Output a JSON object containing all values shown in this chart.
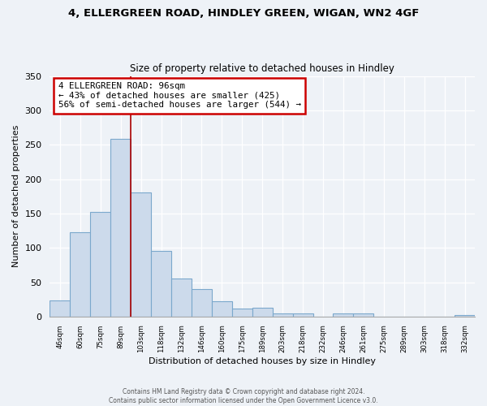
{
  "title1": "4, ELLERGREEN ROAD, HINDLEY GREEN, WIGAN, WN2 4GF",
  "title2": "Size of property relative to detached houses in Hindley",
  "xlabel": "Distribution of detached houses by size in Hindley",
  "ylabel": "Number of detached properties",
  "categories": [
    "46sqm",
    "60sqm",
    "75sqm",
    "89sqm",
    "103sqm",
    "118sqm",
    "132sqm",
    "146sqm",
    "160sqm",
    "175sqm",
    "189sqm",
    "203sqm",
    "218sqm",
    "232sqm",
    "246sqm",
    "261sqm",
    "275sqm",
    "289sqm",
    "303sqm",
    "318sqm",
    "332sqm"
  ],
  "values": [
    24,
    123,
    152,
    258,
    181,
    95,
    55,
    40,
    22,
    12,
    13,
    5,
    5,
    0,
    4,
    5,
    0,
    0,
    0,
    0,
    2
  ],
  "bar_color": "#ccdaeb",
  "bar_edge_color": "#7ba8cc",
  "reference_line_x": 3.5,
  "annotation_text1": "4 ELLERGREEN ROAD: 96sqm",
  "annotation_text2": "← 43% of detached houses are smaller (425)",
  "annotation_text3": "56% of semi-detached houses are larger (544) →",
  "annotation_box_color": "#ffffff",
  "annotation_box_edge_color": "#cc0000",
  "ref_line_color": "#aa0000",
  "ylim": [
    0,
    350
  ],
  "yticks": [
    0,
    50,
    100,
    150,
    200,
    250,
    300,
    350
  ],
  "footer1": "Contains HM Land Registry data © Crown copyright and database right 2024.",
  "footer2": "Contains public sector information licensed under the Open Government Licence v3.0.",
  "background_color": "#eef2f7"
}
